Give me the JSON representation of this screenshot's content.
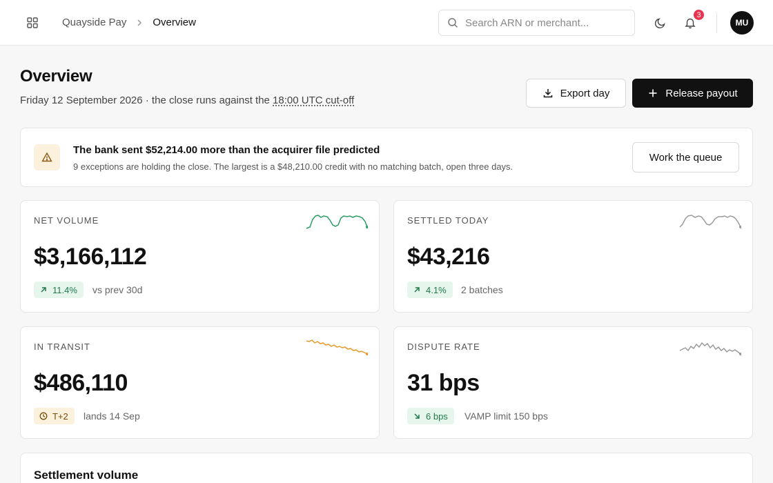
{
  "header": {
    "breadcrumb_root": "Quayside Pay",
    "breadcrumb_current": "Overview",
    "search_placeholder": "Search ARN or merchant...",
    "notification_count": "3",
    "avatar_initials": "MU"
  },
  "page": {
    "title": "Overview",
    "subtitle_prefix": "Friday 12 September 2026 · the close runs against the ",
    "cutoff_link": "18:00 UTC cut-off",
    "export_label": "Export day",
    "release_label": "Release payout"
  },
  "alert": {
    "title": "The bank sent $52,214.00 more than the acquirer file predicted",
    "text": "9 exceptions are holding the close. The largest is a $48,210.00 credit with no matching batch, open three days.",
    "action_label": "Work the queue"
  },
  "metrics": [
    {
      "label": "NET VOLUME",
      "value": "$3,166,112",
      "pill": "11.4%",
      "note": "vs prev 30d",
      "spark_color": "#2a9d62"
    },
    {
      "label": "SETTLED TODAY",
      "value": "$43,216",
      "pill": "4.1%",
      "note": "2 batches",
      "spark_color": "#9a9a9a"
    },
    {
      "label": "IN TRANSIT",
      "value": "$486,110",
      "pill": "T+2",
      "note": "lands 14 Sep",
      "spark_color": "#e89a2b"
    },
    {
      "label": "DISPUTE RATE",
      "value": "31 bps",
      "pill": "6 bps",
      "note": "VAMP limit 150 bps",
      "spark_color": "#9a9a9a"
    }
  ],
  "settlement": {
    "title": "Settlement volume"
  },
  "colors": {
    "accent": "#111111",
    "positive": "#1f7a47",
    "warning": "#7a4a0a",
    "badge": "#e8344e"
  },
  "icons": [
    "grid-icon",
    "chevron-right-icon",
    "search-icon",
    "moon-icon",
    "bell-icon",
    "download-icon",
    "plus-icon",
    "warning-triangle-icon",
    "arrow-up-right-icon",
    "clock-icon",
    "arrow-down-right-icon"
  ]
}
